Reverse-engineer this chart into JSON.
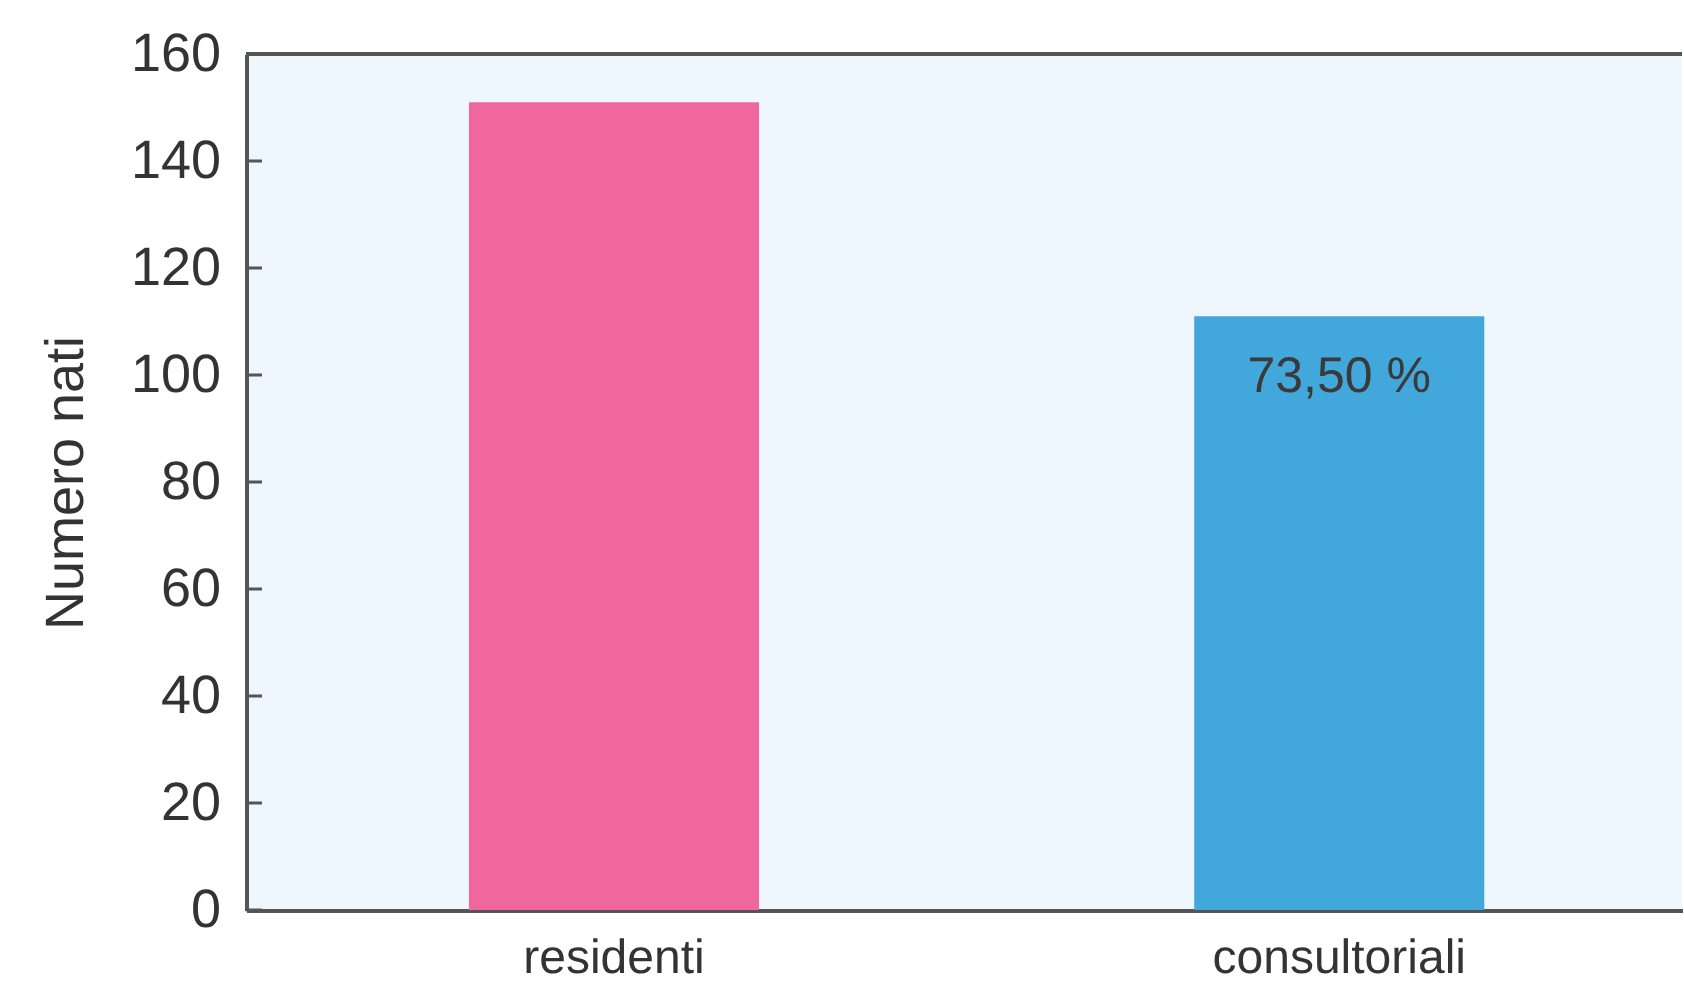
{
  "chart_data": {
    "type": "bar",
    "ylabel": "Numero nati",
    "categories": [
      "residenti",
      "consultoriali"
    ],
    "values": [
      151,
      111
    ],
    "colors": [
      "#ef679c",
      "#42a8dc"
    ],
    "annotations": [
      "73,50 %"
    ],
    "ylim": [
      0,
      160
    ],
    "yticks": [
      0,
      20,
      40,
      60,
      80,
      100,
      120,
      140,
      160
    ],
    "grid": false
  }
}
